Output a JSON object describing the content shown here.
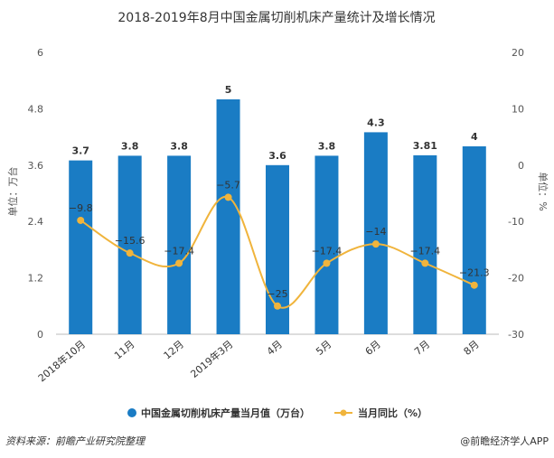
{
  "chart_data": {
    "type": "bar",
    "title": "2018-2019年8月中国金属切削机床产量统计及增长情况",
    "categories": [
      "2018年10月",
      "11月",
      "12月",
      "2019年3月",
      "4月",
      "5月",
      "6月",
      "7月",
      "8月"
    ],
    "series": [
      {
        "name": "中国金属切削机床产量当月值（万台）",
        "type": "bar",
        "axis": "left",
        "values": [
          3.7,
          3.8,
          3.8,
          5,
          3.6,
          3.8,
          4.3,
          3.81,
          4
        ],
        "labels": [
          "3.7",
          "3.8",
          "3.8",
          "5",
          "3.6",
          "3.8",
          "4.3",
          "3.81",
          "4"
        ],
        "color": "#1a7cc4"
      },
      {
        "name": "当月同比（%）",
        "type": "line",
        "axis": "right",
        "values": [
          -9.8,
          -15.6,
          -17.4,
          -5.7,
          -25,
          -17.4,
          -14,
          -17.4,
          -21.3
        ],
        "labels": [
          "−9.8",
          "−15.6",
          "−17.4",
          "−5.7",
          "−25",
          "−17.4",
          "−14",
          "−17.4",
          "−21.3"
        ],
        "color": "#f0b43c"
      }
    ],
    "y_left": {
      "label": "单位：万台",
      "ticks": [
        "0",
        "1.2",
        "2.4",
        "3.6",
        "4.8",
        "6"
      ],
      "range": [
        0,
        6
      ]
    },
    "y_right": {
      "label": "单位：%",
      "ticks": [
        "-30",
        "-20",
        "-10",
        "0",
        "10",
        "20"
      ],
      "range": [
        -30,
        20
      ]
    },
    "grid": false,
    "legend_position": "bottom"
  },
  "source": "资料来源：前瞻产业研究院整理",
  "brand": "@前瞻经济学人APP"
}
